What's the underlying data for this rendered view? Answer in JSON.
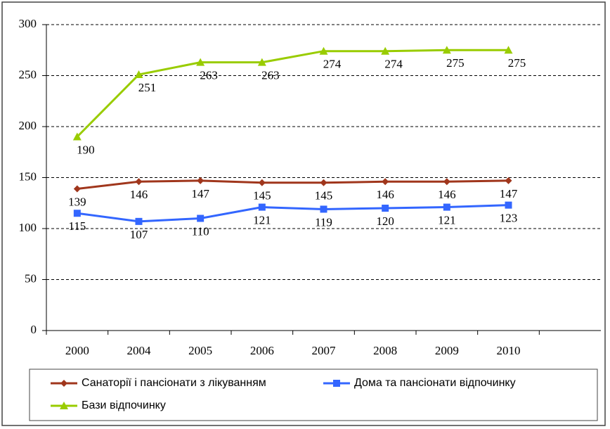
{
  "chart_data": {
    "type": "line",
    "categories": [
      "2000",
      "2004",
      "2005",
      "2006",
      "2007",
      "2008",
      "2009",
      "2010",
      null
    ],
    "series": [
      {
        "name": "Санаторії і пансіонати з лікуванням",
        "color": "#a0361c",
        "marker": "diamond",
        "values": [
          139,
          146,
          147,
          145,
          145,
          146,
          146,
          147,
          null
        ]
      },
      {
        "name": "Дома та пансіонати відпочинку",
        "color": "#3366ff",
        "marker": "square",
        "values": [
          115,
          107,
          110,
          121,
          119,
          120,
          121,
          123,
          null
        ]
      },
      {
        "name": "Бази відпочинку",
        "color": "#99cc00",
        "marker": "triangle",
        "values": [
          190,
          251,
          263,
          263,
          274,
          274,
          275,
          275,
          null
        ]
      }
    ],
    "ylim": [
      0,
      300
    ],
    "yticks": [
      0,
      50,
      100,
      150,
      200,
      250,
      300
    ],
    "grid": true,
    "legend": "bottom"
  }
}
